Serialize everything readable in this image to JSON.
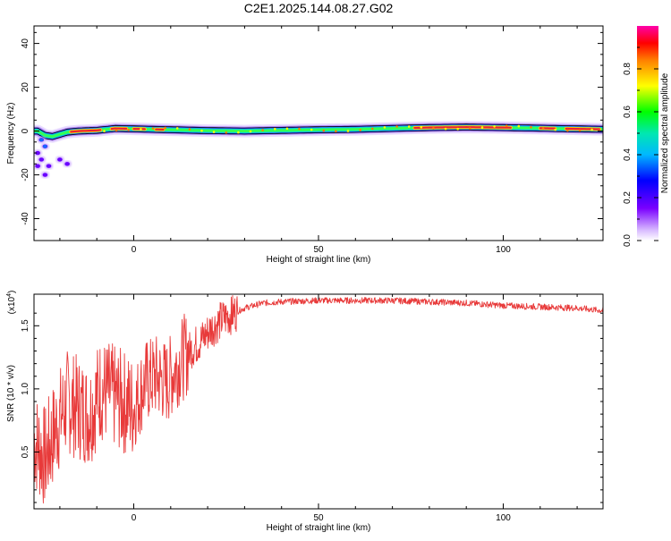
{
  "title": "C2E1.2025.144.08.27.G02",
  "colors": {
    "snr_line": "#e83a3a",
    "ridge_core": "#e8213a",
    "frame": "#000000"
  },
  "chart_data": [
    {
      "type": "heatmap",
      "xlabel": "Height of straight line (km)",
      "ylabel": "Frequency (Hz)",
      "xlim": [
        -27,
        127
      ],
      "ylim": [
        -50,
        48
      ],
      "x_ticks": [
        0,
        50,
        100
      ],
      "y_ticks": [
        40,
        20,
        0,
        -20,
        -40
      ],
      "ridge": [
        {
          "x": -26,
          "f": 0.0
        },
        {
          "x": -24,
          "f": -2.0
        },
        {
          "x": -22,
          "f": -2.5
        },
        {
          "x": -20,
          "f": -1.5
        },
        {
          "x": -18,
          "f": -0.5
        },
        {
          "x": -15,
          "f": 0.0
        },
        {
          "x": -10,
          "f": 0.3
        },
        {
          "x": -5,
          "f": 1.2
        },
        {
          "x": 0,
          "f": 1.0
        },
        {
          "x": 10,
          "f": 0.6
        },
        {
          "x": 20,
          "f": 0.2
        },
        {
          "x": 30,
          "f": 0.0
        },
        {
          "x": 40,
          "f": 0.3
        },
        {
          "x": 50,
          "f": 0.6
        },
        {
          "x": 60,
          "f": 0.8
        },
        {
          "x": 70,
          "f": 1.2
        },
        {
          "x": 80,
          "f": 1.6
        },
        {
          "x": 90,
          "f": 1.8
        },
        {
          "x": 100,
          "f": 1.6
        },
        {
          "x": 110,
          "f": 1.3
        },
        {
          "x": 120,
          "f": 1.0
        },
        {
          "x": 127,
          "f": 0.8
        }
      ],
      "scatter_blobs": [
        {
          "x": -25,
          "f": -4
        },
        {
          "x": -24,
          "f": -7
        },
        {
          "x": -26,
          "f": -10
        },
        {
          "x": -25,
          "f": -13
        },
        {
          "x": -23,
          "f": -16
        },
        {
          "x": -24,
          "f": -20
        },
        {
          "x": -20,
          "f": -13
        },
        {
          "x": -18,
          "f": -15
        },
        {
          "x": -26,
          "f": -16
        }
      ],
      "colorbar": {
        "label": "Normalized spectral amplitude",
        "range": [
          0,
          1
        ],
        "ticks": [
          "0.0",
          "0.2",
          "0.4",
          "0.6",
          "0.8"
        ],
        "tick_values": [
          0,
          0.2,
          0.4,
          0.6,
          0.8
        ]
      }
    },
    {
      "type": "line",
      "xlabel": "Height of straight line (km)",
      "ylabel": "SNR (10 * v/v)",
      "scale_note": "(x10",
      "scale_exp": "4",
      "scale_close": ")",
      "xlim": [
        -27,
        127
      ],
      "ylim": [
        0.05,
        1.75
      ],
      "x_ticks": [
        0,
        50,
        100
      ],
      "y_ticks": [
        "0.5",
        "1.0",
        "1.5"
      ],
      "y_tick_values": [
        0.5,
        1.0,
        1.5
      ],
      "series": [
        {
          "x": [
            -27,
            -24,
            -21,
            -18,
            -15,
            -12,
            -9,
            -6,
            -3,
            0,
            3,
            6,
            9,
            12,
            15,
            18,
            21,
            24,
            27,
            30,
            35,
            40,
            50,
            60,
            70,
            80,
            90,
            100,
            110,
            120,
            127
          ],
          "values": [
            0.6,
            0.45,
            0.7,
            0.9,
            0.85,
            0.8,
            1.0,
            0.95,
            0.9,
            0.85,
            1.05,
            1.1,
            1.05,
            1.2,
            1.3,
            1.38,
            1.48,
            1.55,
            1.6,
            1.64,
            1.68,
            1.69,
            1.7,
            1.7,
            1.7,
            1.69,
            1.68,
            1.66,
            1.65,
            1.64,
            1.62
          ]
        }
      ]
    }
  ]
}
